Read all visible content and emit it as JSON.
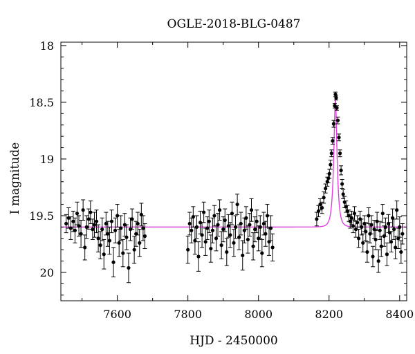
{
  "chart_data": {
    "type": "scatter",
    "title": "OGLE-2018-BLG-0487",
    "xlabel": "HJD - 2450000",
    "ylabel": "I magnitude",
    "xlim": [
      7440,
      8420
    ],
    "ylim": [
      20.25,
      17.97
    ],
    "y_inverted": true,
    "grid": false,
    "x_ticks": [
      7600,
      7800,
      8000,
      8200,
      8400
    ],
    "y_ticks": [
      18,
      18.5,
      19,
      19.5,
      20
    ],
    "y_tick_labels": [
      "18",
      "18.5",
      "19",
      "19.5",
      "20"
    ],
    "series": [
      {
        "kind": "points_with_errorbars",
        "color": "#000000",
        "points": [
          [
            7455,
            19.57,
            0.08
          ],
          [
            7462,
            19.52,
            0.09
          ],
          [
            7468,
            19.61,
            0.1
          ],
          [
            7475,
            19.55,
            0.09
          ],
          [
            7480,
            19.63,
            0.11
          ],
          [
            7486,
            19.48,
            0.1
          ],
          [
            7491,
            19.59,
            0.09
          ],
          [
            7497,
            19.66,
            0.12
          ],
          [
            7503,
            19.45,
            0.09
          ],
          [
            7508,
            19.78,
            0.11
          ],
          [
            7513,
            19.6,
            0.1
          ],
          [
            7519,
            19.53,
            0.09
          ],
          [
            7524,
            19.47,
            0.1
          ],
          [
            7530,
            19.62,
            0.09
          ],
          [
            7535,
            19.58,
            0.11
          ],
          [
            7541,
            19.55,
            0.1
          ],
          [
            7546,
            19.7,
            0.12
          ],
          [
            7552,
            19.76,
            0.12
          ],
          [
            7557,
            19.62,
            0.1
          ],
          [
            7562,
            19.84,
            0.13
          ],
          [
            7568,
            19.57,
            0.1
          ],
          [
            7573,
            19.66,
            0.11
          ],
          [
            7578,
            19.72,
            0.12
          ],
          [
            7584,
            19.55,
            0.1
          ],
          [
            7589,
            19.91,
            0.13
          ],
          [
            7594,
            19.63,
            0.11
          ],
          [
            7600,
            19.5,
            0.1
          ],
          [
            7605,
            19.74,
            0.12
          ],
          [
            7610,
            19.61,
            0.11
          ],
          [
            7616,
            19.83,
            0.12
          ],
          [
            7621,
            19.58,
            0.1
          ],
          [
            7626,
            19.69,
            0.11
          ],
          [
            7632,
            19.96,
            0.13
          ],
          [
            7637,
            19.62,
            0.1
          ],
          [
            7642,
            19.53,
            0.09
          ],
          [
            7648,
            19.8,
            0.12
          ],
          [
            7653,
            19.66,
            0.11
          ],
          [
            7658,
            19.57,
            0.1
          ],
          [
            7663,
            19.74,
            0.12
          ],
          [
            7668,
            19.49,
            0.1
          ],
          [
            7673,
            19.61,
            0.11
          ],
          [
            7678,
            19.68,
            0.11
          ],
          [
            7800,
            19.8,
            0.12
          ],
          [
            7805,
            19.57,
            0.1
          ],
          [
            7810,
            19.63,
            0.11
          ],
          [
            7815,
            19.51,
            0.09
          ],
          [
            7820,
            19.72,
            0.12
          ],
          [
            7825,
            19.6,
            0.1
          ],
          [
            7830,
            19.86,
            0.13
          ],
          [
            7835,
            19.56,
            0.1
          ],
          [
            7840,
            19.67,
            0.11
          ],
          [
            7845,
            19.47,
            0.09
          ],
          [
            7850,
            19.73,
            0.12
          ],
          [
            7855,
            19.61,
            0.1
          ],
          [
            7860,
            19.55,
            0.1
          ],
          [
            7865,
            19.79,
            0.12
          ],
          [
            7870,
            19.63,
            0.11
          ],
          [
            7875,
            19.5,
            0.09
          ],
          [
            7880,
            19.7,
            0.11
          ],
          [
            7885,
            19.58,
            0.1
          ],
          [
            7890,
            19.45,
            0.09
          ],
          [
            7895,
            19.76,
            0.12
          ],
          [
            7900,
            19.62,
            0.11
          ],
          [
            7905,
            19.54,
            0.1
          ],
          [
            7910,
            19.82,
            0.12
          ],
          [
            7915,
            19.59,
            0.1
          ],
          [
            7920,
            19.67,
            0.11
          ],
          [
            7925,
            19.48,
            0.1
          ],
          [
            7930,
            19.74,
            0.12
          ],
          [
            7935,
            19.6,
            0.1
          ],
          [
            7940,
            19.4,
            0.09
          ],
          [
            7945,
            19.69,
            0.11
          ],
          [
            7950,
            19.57,
            0.1
          ],
          [
            7955,
            19.85,
            0.13
          ],
          [
            7960,
            19.63,
            0.11
          ],
          [
            7965,
            19.52,
            0.1
          ],
          [
            7970,
            19.71,
            0.12
          ],
          [
            7975,
            19.58,
            0.1
          ],
          [
            7980,
            19.45,
            0.1
          ],
          [
            7985,
            19.77,
            0.12
          ],
          [
            7990,
            19.62,
            0.11
          ],
          [
            7995,
            19.55,
            0.1
          ],
          [
            8000,
            19.7,
            0.11
          ],
          [
            8005,
            19.6,
            0.1
          ],
          [
            8010,
            19.83,
            0.12
          ],
          [
            8015,
            19.57,
            0.1
          ],
          [
            8020,
            19.66,
            0.11
          ],
          [
            8025,
            19.5,
            0.1
          ],
          [
            8030,
            19.73,
            0.12
          ],
          [
            8035,
            19.61,
            0.11
          ],
          [
            8040,
            19.78,
            0.12
          ],
          [
            8165,
            19.53,
            0.06
          ],
          [
            8170,
            19.46,
            0.05
          ],
          [
            8175,
            19.4,
            0.05
          ],
          [
            8180,
            19.43,
            0.05
          ],
          [
            8185,
            19.34,
            0.05
          ],
          [
            8190,
            19.26,
            0.04
          ],
          [
            8195,
            19.2,
            0.04
          ],
          [
            8198,
            19.17,
            0.04
          ],
          [
            8201,
            19.13,
            0.04
          ],
          [
            8204,
            19.05,
            0.04
          ],
          [
            8207,
            18.95,
            0.03
          ],
          [
            8210,
            18.84,
            0.03
          ],
          [
            8213,
            18.69,
            0.03
          ],
          [
            8216,
            18.53,
            0.02
          ],
          [
            8218,
            18.43,
            0.02
          ],
          [
            8220,
            18.46,
            0.02
          ],
          [
            8222,
            18.55,
            0.02
          ],
          [
            8225,
            18.66,
            0.03
          ],
          [
            8228,
            18.81,
            0.03
          ],
          [
            8231,
            18.95,
            0.03
          ],
          [
            8234,
            19.1,
            0.04
          ],
          [
            8237,
            19.22,
            0.04
          ],
          [
            8240,
            19.31,
            0.04
          ],
          [
            8244,
            19.38,
            0.05
          ],
          [
            8248,
            19.42,
            0.05
          ],
          [
            8252,
            19.46,
            0.05
          ],
          [
            8256,
            19.5,
            0.05
          ],
          [
            8260,
            19.55,
            0.06
          ],
          [
            8264,
            19.52,
            0.06
          ],
          [
            8268,
            19.59,
            0.06
          ],
          [
            8272,
            19.48,
            0.06
          ],
          [
            8276,
            19.62,
            0.07
          ],
          [
            8280,
            19.56,
            0.06
          ],
          [
            8284,
            19.7,
            0.08
          ],
          [
            8288,
            19.53,
            0.07
          ],
          [
            8292,
            19.6,
            0.07
          ],
          [
            8296,
            19.74,
            0.08
          ],
          [
            8300,
            19.57,
            0.07
          ],
          [
            8304,
            19.64,
            0.08
          ],
          [
            8308,
            19.82,
            0.09
          ],
          [
            8312,
            19.5,
            0.07
          ],
          [
            8316,
            19.66,
            0.08
          ],
          [
            8320,
            19.58,
            0.08
          ],
          [
            8324,
            19.86,
            0.09
          ],
          [
            8328,
            19.62,
            0.08
          ],
          [
            8332,
            19.71,
            0.09
          ],
          [
            8336,
            19.55,
            0.08
          ],
          [
            8340,
            19.9,
            0.1
          ],
          [
            8344,
            19.63,
            0.08
          ],
          [
            8348,
            19.77,
            0.09
          ],
          [
            8352,
            19.48,
            0.08
          ],
          [
            8356,
            19.68,
            0.09
          ],
          [
            8360,
            19.6,
            0.08
          ],
          [
            8364,
            19.84,
            0.1
          ],
          [
            8368,
            19.57,
            0.08
          ],
          [
            8372,
            19.65,
            0.09
          ],
          [
            8376,
            19.73,
            0.09
          ],
          [
            8380,
            19.52,
            0.08
          ],
          [
            8384,
            19.62,
            0.09
          ],
          [
            8388,
            19.78,
            0.1
          ],
          [
            8392,
            19.45,
            0.08
          ],
          [
            8396,
            19.7,
            0.09
          ],
          [
            8400,
            19.6,
            0.09
          ],
          [
            8404,
            19.82,
            0.1
          ],
          [
            8408,
            19.66,
            0.09
          ]
        ]
      },
      {
        "kind": "model_curve",
        "color": "#e040e0",
        "baseline": 19.6,
        "peak_mag": 18.47,
        "t0": 8218,
        "tE": 9
      }
    ]
  }
}
